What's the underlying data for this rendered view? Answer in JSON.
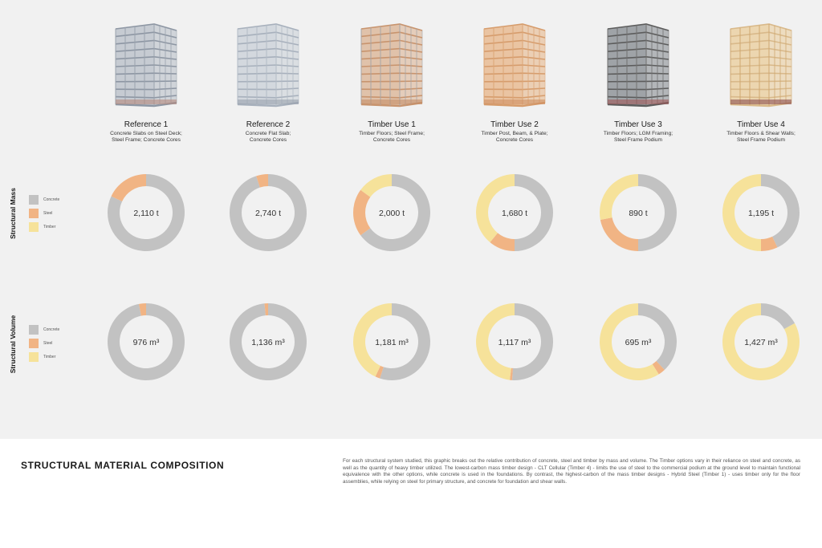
{
  "colors": {
    "Concrete": "#c2c2c2",
    "Steel": "#f1b484",
    "Timber": "#f6e29a"
  },
  "legend": [
    "Concrete",
    "Steel",
    "Timber"
  ],
  "row_labels": [
    "Structural Mass",
    "Structural Volume"
  ],
  "columns": [
    {
      "title": "Reference 1",
      "subtitle": [
        "Concrete Slabs on Steel Deck;",
        "Steel Frame; Concrete Cores"
      ],
      "building_style": "concrete-steel"
    },
    {
      "title": "Reference 2",
      "subtitle": [
        "Concrete Flat Slab;",
        "Concrete Cores"
      ],
      "building_style": "concrete"
    },
    {
      "title": "Timber Use 1",
      "subtitle": [
        "Timber Floors; Steel Frame;",
        "Concrete Cores"
      ],
      "building_style": "timber-floor"
    },
    {
      "title": "Timber Use 2",
      "subtitle": [
        "Timber Post, Beam, & Plate;",
        "Concrete Cores"
      ],
      "building_style": "timber-post"
    },
    {
      "title": "Timber Use 3",
      "subtitle": [
        "Timber Floors; LGM Framing;",
        "Steel Frame Podium"
      ],
      "building_style": "lgm"
    },
    {
      "title": "Timber Use 4",
      "subtitle": [
        "Timber Floors & Shear Walls;",
        "Steel Frame Podium"
      ],
      "building_style": "clt"
    }
  ],
  "chart_data": [
    {
      "type": "pie",
      "row": "Structural Mass",
      "categories": [
        "Concrete",
        "Steel",
        "Timber"
      ],
      "donuts": [
        {
          "total_label": "2,110 t",
          "values": [
            0.82,
            0.18,
            0.0
          ]
        },
        {
          "total_label": "2,740 t",
          "values": [
            0.95,
            0.05,
            0.0
          ]
        },
        {
          "total_label": "2,000 t",
          "values": [
            0.65,
            0.2,
            0.15
          ]
        },
        {
          "total_label": "1,680 t",
          "values": [
            0.5,
            0.11,
            0.39
          ]
        },
        {
          "total_label": "890 t",
          "values": [
            0.5,
            0.22,
            0.28
          ]
        },
        {
          "total_label": "1,195 t",
          "values": [
            0.43,
            0.07,
            0.5
          ]
        }
      ]
    },
    {
      "type": "pie",
      "row": "Structural Volume",
      "categories": [
        "Concrete",
        "Steel",
        "Timber"
      ],
      "donuts": [
        {
          "total_label": "976 m³",
          "values": [
            0.97,
            0.03,
            0.0
          ]
        },
        {
          "total_label": "1,136 m³",
          "values": [
            0.985,
            0.015,
            0.0
          ]
        },
        {
          "total_label": "1,181 m³",
          "values": [
            0.55,
            0.02,
            0.43
          ]
        },
        {
          "total_label": "1,117 m³",
          "values": [
            0.51,
            0.01,
            0.48
          ]
        },
        {
          "total_label": "695 m³",
          "values": [
            0.38,
            0.03,
            0.59
          ]
        },
        {
          "total_label": "1,427 m³",
          "values": [
            0.17,
            0.0,
            0.83
          ]
        }
      ]
    }
  ],
  "footer": {
    "title": "STRUCTURAL MATERIAL COMPOSITION",
    "body": "For each structural system studied, this graphic breaks out the relative contribution of concrete, steel and timber by mass and volume. The Timber options vary in their reliance on steel and concrete, as well as the quantity of heavy timber utilized. The lowest-carbon mass timber design - CLT Cellular (Timber 4) - limits the use of steel to the commercial podium at the ground level to maintain functional equivalence with the other options, while concrete is used in the foundations. By contrast, the highest-carbon of the mass timber designs - Hybrid Steel (Timber 1) - uses timber only for the floor assemblies, while relying on steel for primary structure, and concrete for foundation and shear walls."
  }
}
